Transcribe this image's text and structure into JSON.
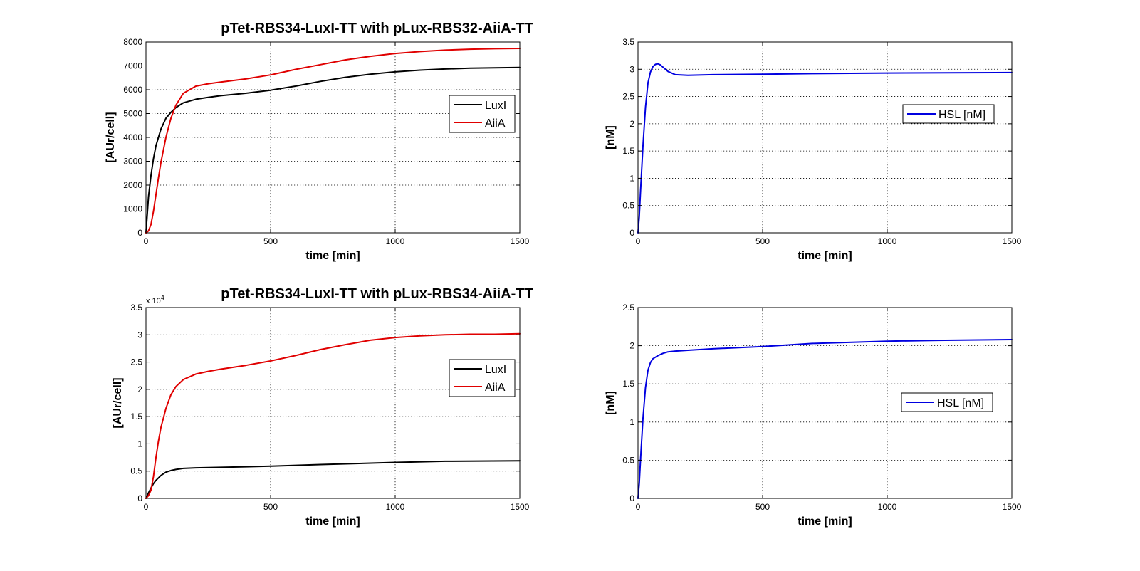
{
  "colors": {
    "luxi": "#000000",
    "aiia": "#e00000",
    "hsl": "#0000e0"
  },
  "chart_data": [
    {
      "type": "line",
      "title": "pTet-RBS34-LuxI-TT with pLux-RBS32-AiiA-TT",
      "xlabel": "time [min]",
      "ylabel": "[AUr/cell]",
      "exponent_label": "",
      "xlim": [
        0,
        1500
      ],
      "ylim": [
        0,
        8000
      ],
      "xticks": [
        0,
        500,
        1000,
        1500
      ],
      "yticks": [
        0,
        1000,
        2000,
        3000,
        4000,
        5000,
        6000,
        7000,
        8000
      ],
      "ytick_labels": [
        "0",
        "1000",
        "2000",
        "3000",
        "4000",
        "5000",
        "6000",
        "7000",
        "8000"
      ],
      "grid": true,
      "legend_position": "right",
      "series": [
        {
          "name": "LuxI",
          "color_key": "luxi",
          "x": [
            0,
            10,
            20,
            30,
            40,
            60,
            80,
            100,
            120,
            150,
            200,
            250,
            300,
            400,
            500,
            600,
            700,
            800,
            900,
            1000,
            1100,
            1200,
            1300,
            1400,
            1500
          ],
          "y": [
            0,
            1500,
            2400,
            3100,
            3650,
            4350,
            4800,
            5050,
            5250,
            5450,
            5600,
            5680,
            5750,
            5850,
            5980,
            6150,
            6350,
            6520,
            6650,
            6750,
            6820,
            6870,
            6900,
            6920,
            6930
          ]
        },
        {
          "name": "AiiA",
          "color_key": "aiia",
          "x": [
            0,
            10,
            20,
            30,
            40,
            50,
            60,
            80,
            100,
            120,
            150,
            200,
            250,
            300,
            400,
            500,
            600,
            700,
            800,
            900,
            1000,
            1100,
            1200,
            1300,
            1400,
            1500
          ],
          "y": [
            0,
            80,
            350,
            900,
            1600,
            2300,
            2950,
            4000,
            4800,
            5350,
            5850,
            6150,
            6250,
            6320,
            6450,
            6620,
            6850,
            7050,
            7250,
            7400,
            7520,
            7600,
            7660,
            7700,
            7720,
            7730
          ]
        }
      ]
    },
    {
      "type": "line",
      "title": "",
      "xlabel": "time [min]",
      "ylabel": "[nM]",
      "exponent_label": "",
      "xlim": [
        0,
        1500
      ],
      "ylim": [
        0,
        3.5
      ],
      "xticks": [
        0,
        500,
        1000,
        1500
      ],
      "yticks": [
        0,
        0.5,
        1,
        1.5,
        2,
        2.5,
        3,
        3.5
      ],
      "ytick_labels": [
        "0",
        "0.5",
        "1",
        "1.5",
        "2",
        "2.5",
        "3",
        "3.5"
      ],
      "grid": true,
      "legend_position": "right",
      "series": [
        {
          "name": "HSL [nM]",
          "color_key": "hsl",
          "x": [
            0,
            5,
            10,
            20,
            30,
            40,
            50,
            60,
            70,
            80,
            90,
            100,
            120,
            150,
            200,
            300,
            500,
            700,
            1000,
            1500
          ],
          "y": [
            0,
            0.3,
            0.75,
            1.6,
            2.3,
            2.75,
            2.95,
            3.05,
            3.09,
            3.1,
            3.08,
            3.04,
            2.96,
            2.9,
            2.89,
            2.9,
            2.91,
            2.92,
            2.93,
            2.94
          ]
        }
      ]
    },
    {
      "type": "line",
      "title": "pTet-RBS34-LuxI-TT with pLux-RBS34-AiiA-TT",
      "xlabel": "time [min]",
      "ylabel": "[AUr/cell]",
      "exponent_label": "x 10",
      "exponent_power": "4",
      "xlim": [
        0,
        1500
      ],
      "ylim": [
        0,
        3.5
      ],
      "xticks": [
        0,
        500,
        1000,
        1500
      ],
      "yticks": [
        0,
        0.5,
        1,
        1.5,
        2,
        2.5,
        3,
        3.5
      ],
      "ytick_labels": [
        "0",
        "0.5",
        "1",
        "1.5",
        "2",
        "2.5",
        "3",
        "3.5"
      ],
      "grid": true,
      "legend_position": "right",
      "series": [
        {
          "name": "LuxI",
          "color_key": "luxi",
          "x": [
            0,
            10,
            20,
            30,
            40,
            60,
            80,
            100,
            120,
            150,
            200,
            300,
            400,
            500,
            700,
            1000,
            1200,
            1500
          ],
          "y": [
            0,
            0.1,
            0.19,
            0.27,
            0.33,
            0.42,
            0.48,
            0.51,
            0.53,
            0.55,
            0.56,
            0.57,
            0.58,
            0.59,
            0.62,
            0.66,
            0.68,
            0.69
          ]
        },
        {
          "name": "AiiA",
          "color_key": "aiia",
          "x": [
            0,
            10,
            20,
            30,
            40,
            50,
            60,
            80,
            100,
            120,
            150,
            200,
            250,
            300,
            400,
            500,
            600,
            700,
            800,
            900,
            1000,
            1100,
            1200,
            1300,
            1400,
            1500
          ],
          "y": [
            0,
            0.05,
            0.15,
            0.4,
            0.75,
            1.05,
            1.3,
            1.65,
            1.9,
            2.05,
            2.18,
            2.28,
            2.33,
            2.37,
            2.44,
            2.52,
            2.62,
            2.73,
            2.82,
            2.9,
            2.95,
            2.98,
            3.0,
            3.01,
            3.01,
            3.02
          ]
        }
      ]
    },
    {
      "type": "line",
      "title": "",
      "xlabel": "time [min]",
      "ylabel": "[nM]",
      "exponent_label": "",
      "xlim": [
        0,
        1500
      ],
      "ylim": [
        0,
        2.5
      ],
      "xticks": [
        0,
        500,
        1000,
        1500
      ],
      "yticks": [
        0,
        0.5,
        1,
        1.5,
        2,
        2.5
      ],
      "ytick_labels": [
        "0",
        "0.5",
        "1",
        "1.5",
        "2",
        "2.5"
      ],
      "grid": true,
      "legend_position": "right",
      "series": [
        {
          "name": "HSL [nM]",
          "color_key": "hsl",
          "x": [
            0,
            5,
            10,
            20,
            30,
            40,
            50,
            60,
            70,
            80,
            100,
            120,
            150,
            200,
            300,
            500,
            700,
            1000,
            1200,
            1500
          ],
          "y": [
            0,
            0.2,
            0.5,
            1.05,
            1.45,
            1.68,
            1.78,
            1.83,
            1.85,
            1.87,
            1.9,
            1.92,
            1.93,
            1.94,
            1.96,
            1.99,
            2.03,
            2.06,
            2.07,
            2.08
          ]
        }
      ]
    }
  ]
}
